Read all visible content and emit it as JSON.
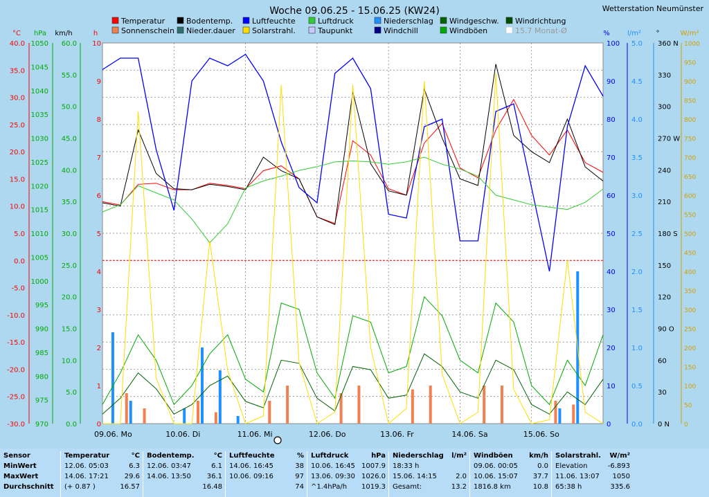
{
  "header": {
    "title": "Woche 09.06.25 - 15.06.25 (KW24)",
    "station": "Wetterstation Neumünster"
  },
  "legend": [
    {
      "label": "Temperatur",
      "color": "#ff0000"
    },
    {
      "label": "Bodentemp.",
      "color": "#000000"
    },
    {
      "label": "Luftfeuchte",
      "color": "#0000ff"
    },
    {
      "label": "Luftdruck",
      "color": "#33cc33"
    },
    {
      "label": "Niederschlag",
      "color": "#1e90ff"
    },
    {
      "label": "Windgeschw.",
      "color": "#006400"
    },
    {
      "label": "Windrichtung",
      "color": "#004d00"
    },
    {
      "label": "Sonnenschein",
      "color": "#f08050"
    },
    {
      "label": "Nieder.dauer",
      "color": "#2f6f6f"
    },
    {
      "label": "Solarstrahl.",
      "color": "#ffdd00"
    },
    {
      "label": "Taupunkt",
      "color": "#c8c8ff"
    },
    {
      "label": "Windchill",
      "color": "#00008b"
    },
    {
      "label": "Windböen",
      "color": "#00aa00"
    },
    {
      "label": "15.7 Monat-Ø",
      "color": "#999999"
    }
  ],
  "axes": {
    "units": {
      "temp": "°C",
      "hpa": "hPa",
      "kmh": "km/h",
      "sun": "h",
      "hum": "%",
      "rain": "l/m²",
      "dir": "°",
      "solar": "W/m²"
    },
    "temp_ticks": [
      "40.0",
      "35.0",
      "30.0",
      "25.0",
      "20.0",
      "15.0",
      "10.0",
      "5.0",
      "0.0",
      "-5.0",
      "-10.0",
      "-15.0",
      "-20.0",
      "-25.0",
      "-30.0"
    ],
    "hpa_ticks": [
      "1050",
      "1045",
      "1040",
      "1035",
      "1030",
      "1025",
      "1020",
      "1015",
      "1010",
      "1005",
      "1000",
      "995",
      "990",
      "985",
      "980",
      "975",
      "970"
    ],
    "kmh_ticks": [
      "60.0",
      "55.0",
      "50.0",
      "45.0",
      "40.0",
      "35.0",
      "30.0",
      "25.0",
      "20.0",
      "15.0",
      "10.0",
      "5.0",
      "0.0"
    ],
    "sun_ticks": [
      "10",
      "9",
      "8",
      "7",
      "6",
      "5",
      "4",
      "3",
      "2",
      "1",
      "0"
    ],
    "hum_ticks": [
      "100",
      "90",
      "80",
      "70",
      "60",
      "50",
      "40",
      "30",
      "20",
      "10",
      "0"
    ],
    "rain_ticks": [
      "5.0",
      "4.5",
      "4.0",
      "3.5",
      "3.0",
      "2.5",
      "2.0",
      "1.5",
      "1.0",
      "0.5",
      "0.0"
    ],
    "dir_ticks": [
      "360 N",
      "330",
      "300",
      "270 W",
      "240",
      "210",
      "180 S",
      "150",
      "120",
      "90  O",
      "60",
      "30",
      "0  N"
    ],
    "solar_ticks": [
      "1000",
      "950",
      "900",
      "850",
      "800",
      "750",
      "700",
      "650",
      "600",
      "550",
      "500",
      "450",
      "400",
      "350",
      "300",
      "250",
      "200",
      "150",
      "100",
      "50",
      "0"
    ],
    "day_labels": [
      "09.06.  Mo",
      "10.06.  Di",
      "11.06.  Mi",
      "12.06.  Do",
      "13.06.  Fr",
      "14.06.  Sa",
      "15.06.  So"
    ]
  },
  "chart_data": {
    "type": "line",
    "x": [
      "09.06. 00:00",
      "09.06. 06:00",
      "09.06. 12:00",
      "09.06. 18:00",
      "10.06. 00:00",
      "10.06. 06:00",
      "10.06. 12:00",
      "10.06. 18:00",
      "11.06. 00:00",
      "11.06. 06:00",
      "11.06. 12:00",
      "11.06. 18:00",
      "12.06. 00:00",
      "12.06. 06:00",
      "12.06. 12:00",
      "12.06. 18:00",
      "13.06. 00:00",
      "13.06. 06:00",
      "13.06. 12:00",
      "13.06. 18:00",
      "14.06. 00:00",
      "14.06. 06:00",
      "14.06. 12:00",
      "14.06. 18:00",
      "15.06. 00:00",
      "15.06. 06:00",
      "15.06. 12:00",
      "15.06. 18:00",
      "16.06. 00:00"
    ],
    "series": [
      {
        "name": "Temperatur",
        "unit": "°C",
        "values": [
          10.8,
          10.2,
          14.0,
          14.2,
          13.0,
          13.0,
          14.2,
          13.8,
          13.2,
          16.5,
          17.4,
          15.0,
          8.0,
          6.8,
          22.0,
          19.4,
          13.2,
          12.0,
          21.6,
          25.2,
          17.0,
          15.2,
          24.0,
          29.6,
          23.0,
          19.4,
          24.0,
          18.0,
          16.2
        ]
      },
      {
        "name": "Bodentemp.",
        "unit": "°C",
        "values": [
          10.6,
          10.0,
          24.0,
          16.0,
          13.2,
          13.0,
          14.0,
          13.6,
          13.0,
          19.0,
          16.5,
          15.0,
          8.0,
          6.6,
          31.0,
          17.8,
          12.8,
          12.0,
          31.5,
          22.5,
          15.0,
          13.8,
          36.1,
          23.0,
          20.0,
          18.0,
          26.0,
          17.2,
          14.6
        ]
      },
      {
        "name": "Luftfeuchte",
        "unit": "%",
        "values": [
          93,
          96,
          96,
          72,
          56,
          90,
          96,
          94,
          97,
          90,
          74,
          62,
          58,
          92,
          96,
          88,
          55,
          54,
          78,
          80,
          48,
          48,
          82,
          84,
          62,
          40,
          78,
          94,
          86
        ]
      },
      {
        "name": "Luftdruck",
        "unit": "hPa",
        "values": [
          1014.5,
          1016.0,
          1020.0,
          1018.5,
          1017.0,
          1013.0,
          1008.0,
          1012.0,
          1019.5,
          1021.0,
          1022.0,
          1023.2,
          1024.0,
          1025.0,
          1025.2,
          1025.0,
          1024.5,
          1025.0,
          1026.0,
          1024.5,
          1023.5,
          1022.0,
          1018.0,
          1017.0,
          1016.0,
          1015.5,
          1015.0,
          1016.5,
          1019.3
        ]
      },
      {
        "name": "Windböen",
        "unit": "km/h",
        "values": [
          3.0,
          8.0,
          14.0,
          10.0,
          3.0,
          6.0,
          11.0,
          14.0,
          7.0,
          5.0,
          19.0,
          18.0,
          8.0,
          4.0,
          17.0,
          16.0,
          8.0,
          9.0,
          20.0,
          17.0,
          10.0,
          8.0,
          19.0,
          16.0,
          6.0,
          3.0,
          10.0,
          6.0,
          14.0
        ]
      },
      {
        "name": "Windgeschw.",
        "unit": "km/h",
        "values": [
          1.5,
          4.0,
          8.0,
          5.5,
          1.5,
          3.0,
          6.0,
          7.5,
          3.5,
          2.5,
          10.0,
          9.5,
          4.0,
          2.0,
          9.0,
          8.5,
          4.0,
          4.5,
          11.0,
          9.0,
          5.0,
          4.0,
          10.0,
          8.5,
          3.0,
          1.5,
          5.0,
          3.0,
          7.0
        ]
      },
      {
        "name": "Solarstrahl.",
        "unit": "W/m²",
        "values": [
          0,
          0,
          820,
          120,
          0,
          0,
          480,
          140,
          0,
          20,
          890,
          160,
          0,
          30,
          890,
          200,
          0,
          40,
          900,
          130,
          0,
          30,
          920,
          90,
          0,
          10,
          430,
          30,
          0
        ]
      }
    ],
    "bars": [
      {
        "name": "Sonnenschein",
        "unit": "h",
        "values": [
          0.0,
          0.8,
          0.4,
          0.0,
          0.0,
          0.6,
          0.3,
          0.0,
          0.0,
          0.6,
          1.0,
          0.0,
          0.0,
          0.8,
          1.0,
          0.0,
          0.0,
          0.9,
          1.0,
          0.0,
          0.0,
          1.0,
          1.0,
          0.0,
          0.0,
          0.6,
          0.5,
          0.0
        ]
      },
      {
        "name": "Niederschlag",
        "unit": "l/m²",
        "values": [
          1.2,
          0.3,
          0.0,
          0.0,
          0.2,
          1.0,
          0.7,
          0.1,
          0.0,
          0.0,
          0.0,
          0.0,
          0.0,
          0.0,
          0.0,
          0.0,
          0.0,
          0.0,
          0.0,
          0.0,
          0.0,
          0.0,
          0.0,
          0.0,
          0.0,
          0.2,
          2.0,
          0.0
        ]
      }
    ],
    "ylim_temp": [
      -30,
      40
    ],
    "ylim_hpa": [
      970,
      1050
    ],
    "ylim_kmh": [
      0,
      60
    ],
    "ylim_hum": [
      0,
      100
    ],
    "ylim_solar": [
      0,
      1000
    ],
    "grid": true
  },
  "stats": {
    "rows": [
      "Sensor",
      "MinWert",
      "MaxWert",
      "Durchschnitt"
    ],
    "columns": [
      {
        "name": "Temperatur",
        "unit": "°C",
        "min_time": "12.06.  05:03",
        "min_val": "6.3",
        "max_time": "14.06.  17:21",
        "max_val": "29.6",
        "avg_label": "(+ 0.87 )",
        "avg_val": "16.57"
      },
      {
        "name": "Bodentemp.",
        "unit": "°C",
        "min_time": "12.06.  03:47",
        "min_val": "6.1",
        "max_time": "14.06.  13:50",
        "max_val": "36.1",
        "avg_label": "",
        "avg_val": "16.48"
      },
      {
        "name": "Luftfeuchte",
        "unit": "%",
        "min_time": "14.06.  16:45",
        "min_val": "38",
        "max_time": "10.06.  09:16",
        "max_val": "97",
        "avg_label": "",
        "avg_val": "74"
      },
      {
        "name": "Luftdruck",
        "unit": "hPa",
        "min_time": "10.06.  16:45",
        "min_val": "1007.9",
        "max_time": "13.06.  09:30",
        "max_val": "1026.0",
        "avg_label": "^1.4hPa/h",
        "avg_val": "1019.3"
      },
      {
        "name": "Niederschlag",
        "unit": "l/m²",
        "min_time": "18:33 h",
        "min_val": "",
        "max_time": "15.06.  14:15",
        "max_val": "2.0",
        "avg_label": "Gesamt:",
        "avg_val": "13.2"
      },
      {
        "name": "Windböen",
        "unit": "km/h",
        "min_time": "09.06.  00:05",
        "min_val": "0.0",
        "max_time": "10.06.  15:07",
        "max_val": "37.7",
        "avg_label": "1816.8 km",
        "avg_val": "10.8"
      },
      {
        "name": "Solarstrahl.",
        "unit": "W/m²",
        "min_time": "Elevation",
        "min_val": "-6.893",
        "max_time": "11.06.  13:07",
        "max_val": "1050",
        "avg_label": "65:38 h",
        "avg_val": "335.6"
      }
    ]
  }
}
